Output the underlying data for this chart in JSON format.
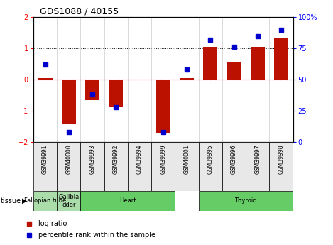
{
  "title": "GDS1088 / 40155",
  "samples": [
    "GSM39991",
    "GSM40000",
    "GSM39993",
    "GSM39992",
    "GSM39994",
    "GSM39999",
    "GSM40001",
    "GSM39995",
    "GSM39996",
    "GSM39997",
    "GSM39998"
  ],
  "log_ratio": [
    0.05,
    -1.4,
    -0.65,
    -0.85,
    0.0,
    -1.7,
    0.05,
    1.05,
    0.55,
    1.05,
    1.35
  ],
  "percentile_rank": [
    62,
    8,
    38,
    28,
    null,
    8,
    58,
    82,
    76,
    85,
    90
  ],
  "tissue_groups": [
    {
      "label": "Fallopian tube",
      "start": 0,
      "end": 1,
      "color": "#aaddaa"
    },
    {
      "label": "Gallbla\ndder",
      "start": 1,
      "end": 2,
      "color": "#aaddaa"
    },
    {
      "label": "Heart",
      "start": 2,
      "end": 6,
      "color": "#66cc66"
    },
    {
      "label": "Thyroid",
      "start": 7,
      "end": 11,
      "color": "#66cc66"
    }
  ],
  "bar_color": "#bb1100",
  "dot_color": "#0000cc",
  "ylim": [
    -2,
    2
  ],
  "y2lim": [
    0,
    100
  ],
  "yticks_left": [
    -2,
    -1,
    0,
    1,
    2
  ],
  "yticks_right": [
    0,
    25,
    50,
    75,
    100
  ],
  "ytick_labels_right": [
    "0",
    "25",
    "50",
    "75",
    "100%"
  ],
  "bar_width": 0.6,
  "background_color": "#ffffff",
  "plot_bg": "#ffffff"
}
